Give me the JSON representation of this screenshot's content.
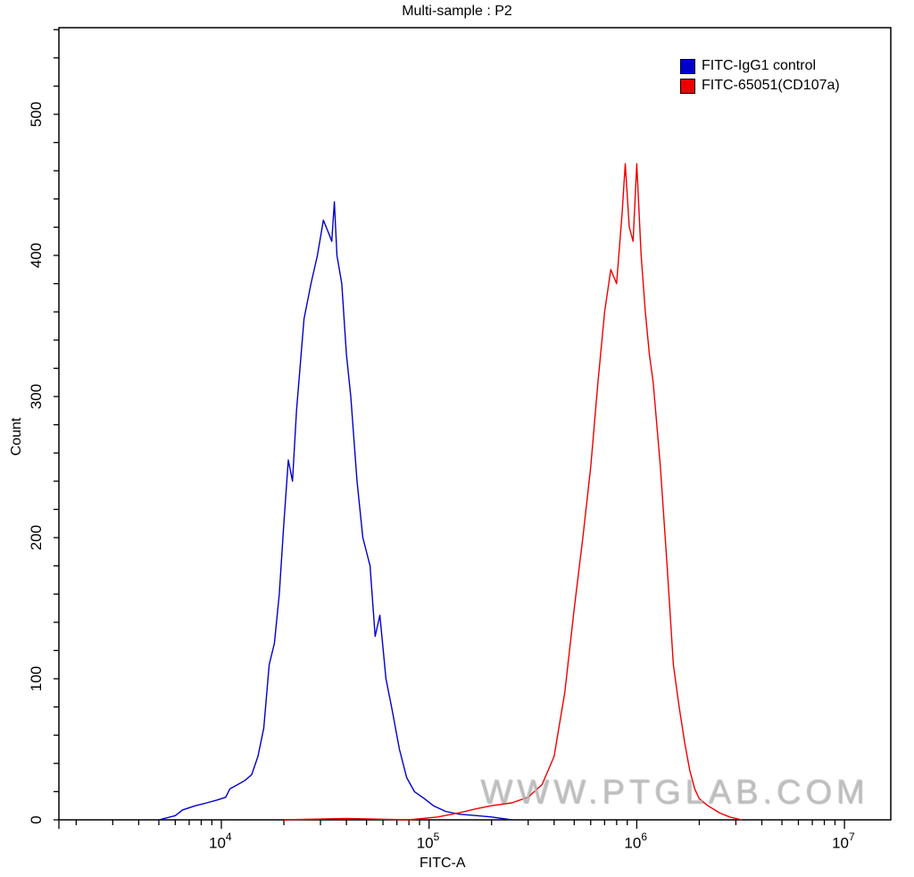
{
  "chart_data": {
    "type": "line",
    "title": "Multi-sample : P2",
    "xlabel": "FITC-A",
    "ylabel": "Count",
    "xscale": "log",
    "xlim": [
      1500,
      17000000
    ],
    "ylim": [
      0,
      560
    ],
    "y_ticks": [
      0,
      100,
      200,
      300,
      400,
      500
    ],
    "x_ticks": [
      "10^4",
      "10^5",
      "10^6",
      "10^7"
    ],
    "legend_position": "top-right",
    "series": [
      {
        "name": "FITC-IgG1 control",
        "color": "#0000cc",
        "x": [
          5000,
          6000,
          6500,
          7500,
          8500,
          9500,
          10500,
          11000,
          12000,
          13000,
          14000,
          15000,
          16000,
          17000,
          18000,
          19000,
          20000,
          21000,
          22000,
          23000,
          25000,
          27000,
          29000,
          31000,
          33000,
          34000,
          35000,
          36000,
          38000,
          40000,
          42000,
          45000,
          48000,
          52000,
          55000,
          58000,
          62000,
          66000,
          72000,
          78000,
          85000,
          95000,
          105000,
          120000,
          140000,
          170000,
          200000,
          250000
        ],
        "values": [
          0,
          3,
          7,
          10,
          12,
          14,
          16,
          22,
          25,
          28,
          32,
          45,
          65,
          110,
          125,
          160,
          210,
          255,
          240,
          290,
          355,
          380,
          400,
          425,
          415,
          410,
          438,
          400,
          380,
          330,
          300,
          240,
          200,
          180,
          130,
          145,
          100,
          80,
          50,
          30,
          20,
          15,
          10,
          6,
          4,
          3,
          2,
          0
        ]
      },
      {
        "name": "FITC-65051(CD107a)",
        "color": "#ee0000",
        "x": [
          20000,
          40000,
          80000,
          110000,
          140000,
          170000,
          200000,
          250000,
          300000,
          350000,
          400000,
          450000,
          500000,
          550000,
          600000,
          650000,
          700000,
          750000,
          800000,
          850000,
          880000,
          920000,
          960000,
          1000000,
          1050000,
          1100000,
          1150000,
          1200000,
          1300000,
          1400000,
          1500000,
          1600000,
          1700000,
          1800000,
          1900000,
          2000000,
          2200000,
          2500000,
          2800000,
          3200000
        ],
        "values": [
          0,
          1,
          0,
          2,
          5,
          8,
          10,
          12,
          16,
          25,
          45,
          90,
          150,
          200,
          250,
          310,
          360,
          390,
          380,
          430,
          465,
          420,
          410,
          465,
          400,
          360,
          330,
          310,
          250,
          180,
          110,
          80,
          55,
          35,
          22,
          15,
          10,
          5,
          2,
          0
        ]
      }
    ],
    "watermark": "WWW.PTGLAB.COM"
  }
}
